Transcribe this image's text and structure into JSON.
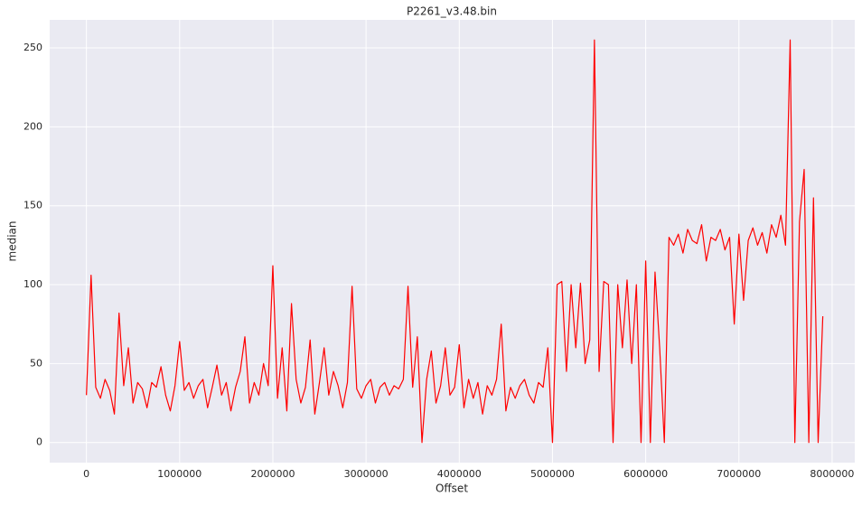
{
  "chart_data": {
    "type": "line",
    "title": "P2261_v3.48.bin",
    "x_label": "Offset",
    "y_label": "median",
    "color": "#ff0000",
    "grid": true,
    "x": [
      0,
      50000,
      100000,
      150000,
      200000,
      250000,
      300000,
      350000,
      400000,
      450000,
      500000,
      550000,
      600000,
      650000,
      700000,
      750000,
      800000,
      850000,
      900000,
      950000,
      1000000,
      1050000,
      1100000,
      1150000,
      1200000,
      1250000,
      1300000,
      1350000,
      1400000,
      1450000,
      1500000,
      1550000,
      1600000,
      1650000,
      1700000,
      1750000,
      1800000,
      1850000,
      1900000,
      1950000,
      2000000,
      2050000,
      2100000,
      2150000,
      2200000,
      2250000,
      2300000,
      2350000,
      2400000,
      2450000,
      2500000,
      2550000,
      2600000,
      2650000,
      2700000,
      2750000,
      2800000,
      2850000,
      2900000,
      2950000,
      3000000,
      3050000,
      3100000,
      3150000,
      3200000,
      3250000,
      3300000,
      3350000,
      3400000,
      3450000,
      3500000,
      3550000,
      3600000,
      3650000,
      3700000,
      3750000,
      3800000,
      3850000,
      3900000,
      3950000,
      4000000,
      4050000,
      4100000,
      4150000,
      4200000,
      4250000,
      4300000,
      4350000,
      4400000,
      4450000,
      4500000,
      4550000,
      4600000,
      4650000,
      4700000,
      4750000,
      4800000,
      4850000,
      4900000,
      4950000,
      5000000,
      5050000,
      5100000,
      5150000,
      5200000,
      5250000,
      5300000,
      5350000,
      5400000,
      5450000,
      5500000,
      5550000,
      5600000,
      5650000,
      5700000,
      5750000,
      5800000,
      5850000,
      5900000,
      5950000,
      6000000,
      6050000,
      6100000,
      6150000,
      6200000,
      6250000,
      6300000,
      6350000,
      6400000,
      6450000,
      6500000,
      6550000,
      6600000,
      6650000,
      6700000,
      6750000,
      6800000,
      6850000,
      6900000,
      6950000,
      7000000,
      7050000,
      7100000,
      7150000,
      7200000,
      7250000,
      7300000,
      7350000,
      7400000,
      7450000,
      7500000,
      7550000,
      7600000,
      7650000,
      7700000,
      7750000,
      7800000,
      7850000,
      7900000
    ],
    "values": [
      30,
      106,
      35,
      28,
      40,
      33,
      18,
      82,
      36,
      60,
      25,
      38,
      34,
      22,
      38,
      35,
      48,
      30,
      20,
      36,
      64,
      33,
      38,
      28,
      36,
      40,
      22,
      35,
      49,
      30,
      38,
      20,
      35,
      45,
      67,
      25,
      38,
      30,
      50,
      36,
      112,
      28,
      60,
      20,
      88,
      40,
      25,
      35,
      65,
      18,
      38,
      60,
      30,
      45,
      36,
      22,
      38,
      99,
      34,
      28,
      36,
      40,
      25,
      35,
      38,
      30,
      36,
      34,
      40,
      99,
      35,
      67,
      0,
      40,
      58,
      25,
      36,
      60,
      30,
      35,
      62,
      22,
      40,
      28,
      38,
      18,
      36,
      30,
      40,
      75,
      20,
      35,
      28,
      36,
      40,
      30,
      25,
      38,
      35,
      60,
      0,
      100,
      102,
      45,
      100,
      60,
      101,
      50,
      65,
      255,
      45,
      102,
      100,
      0,
      100,
      60,
      103,
      50,
      100,
      0,
      115,
      0,
      108,
      60,
      0,
      130,
      125,
      132,
      120,
      135,
      128,
      126,
      138,
      115,
      130,
      128,
      135,
      122,
      130,
      75,
      132,
      90,
      128,
      136,
      125,
      133,
      120,
      138,
      130,
      144,
      125,
      255,
      0,
      140,
      173,
      0,
      155,
      0,
      80
    ],
    "xlim": [
      -394000,
      8243000
    ],
    "xticks": [
      0,
      1000000,
      2000000,
      3000000,
      4000000,
      5000000,
      6000000,
      7000000,
      8000000
    ],
    "ylim": [
      -12.75,
      267.75
    ],
    "yticks": [
      0,
      50,
      100,
      150,
      200,
      250
    ]
  }
}
